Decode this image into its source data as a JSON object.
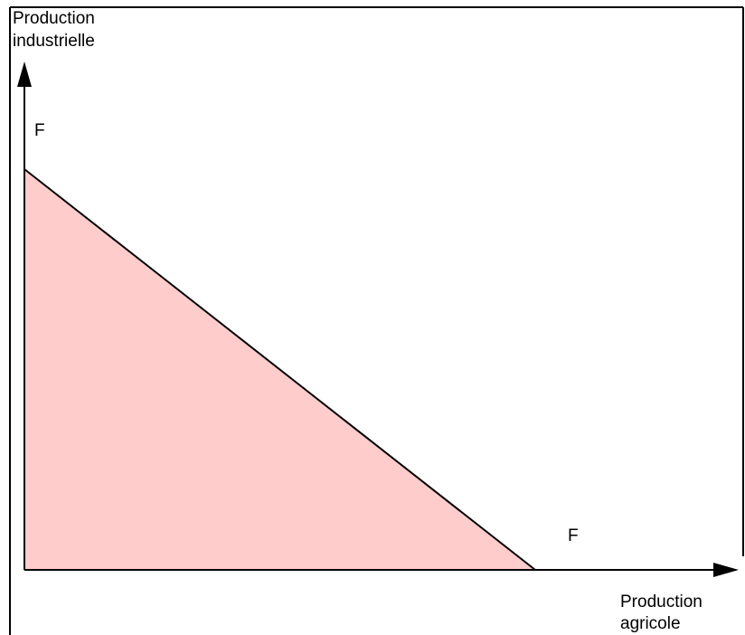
{
  "y_axis_label": [
    "Production",
    "industrielle"
  ],
  "x_axis_label": [
    "Production",
    "agricole"
  ],
  "curve_labels": [
    "F",
    "F"
  ]
}
